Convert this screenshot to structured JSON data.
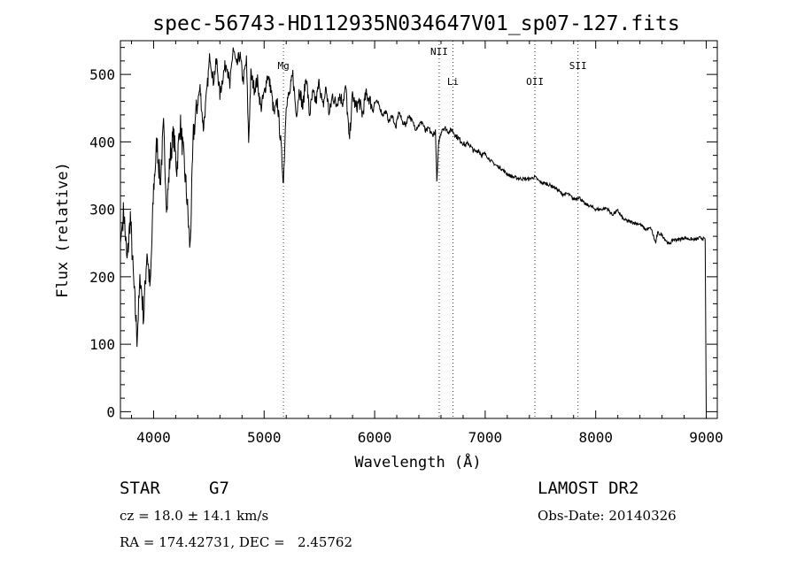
{
  "chart_data": {
    "type": "line",
    "title": "spec-56743-HD112935N034647V01_sp07-127.fits",
    "xlabel": "Wavelength (Å)",
    "ylabel": "Flux (relative)",
    "xlim": [
      3700,
      9100
    ],
    "ylim": [
      -10,
      550
    ],
    "xticks": [
      4000,
      5000,
      6000,
      7000,
      8000,
      9000
    ],
    "yticks": [
      0,
      100,
      200,
      300,
      400,
      500
    ],
    "grid": false,
    "line_color": "#000000",
    "series": [
      {
        "x": [
          3700,
          3730,
          3760,
          3790,
          3820,
          3850,
          3880,
          3910,
          3940,
          3970,
          4000,
          4030,
          4060,
          4090,
          4120,
          4150,
          4180,
          4210,
          4240,
          4270,
          4300,
          4330,
          4360,
          4390,
          4420,
          4450,
          4480,
          4510,
          4540,
          4570,
          4600,
          4630,
          4660,
          4690,
          4720,
          4750,
          4780,
          4810,
          4840,
          4860,
          4880,
          4910,
          4940,
          4970,
          5000,
          5030,
          5060,
          5090,
          5120,
          5150,
          5175,
          5200,
          5230,
          5260,
          5290,
          5320,
          5350,
          5380,
          5410,
          5440,
          5470,
          5500,
          5530,
          5560,
          5590,
          5620,
          5650,
          5680,
          5710,
          5740,
          5770,
          5800,
          5830,
          5860,
          5890,
          5920,
          5950,
          5980,
          6010,
          6040,
          6070,
          6100,
          6130,
          6160,
          6190,
          6220,
          6250,
          6280,
          6310,
          6340,
          6370,
          6400,
          6430,
          6460,
          6490,
          6520,
          6550,
          6563,
          6580,
          6610,
          6640,
          6670,
          6700,
          6730,
          6760,
          6790,
          6820,
          6850,
          6880,
          6910,
          6940,
          6970,
          7000,
          7050,
          7100,
          7150,
          7200,
          7250,
          7300,
          7350,
          7400,
          7450,
          7500,
          7550,
          7600,
          7650,
          7700,
          7750,
          7800,
          7850,
          7900,
          7950,
          8000,
          8050,
          8100,
          8150,
          8200,
          8250,
          8300,
          8350,
          8400,
          8450,
          8500,
          8542,
          8560,
          8600,
          8662,
          8700,
          8750,
          8800,
          8850,
          8900,
          8950,
          8990,
          9000,
          9005
        ],
        "values": [
          250,
          300,
          220,
          290,
          190,
          110,
          200,
          140,
          240,
          180,
          330,
          400,
          340,
          420,
          300,
          380,
          410,
          360,
          430,
          380,
          320,
          240,
          410,
          450,
          480,
          420,
          470,
          530,
          490,
          520,
          470,
          500,
          520,
          480,
          540,
          510,
          530,
          490,
          520,
          400,
          500,
          480,
          490,
          450,
          470,
          500,
          480,
          440,
          460,
          400,
          340,
          460,
          470,
          500,
          440,
          480,
          450,
          500,
          440,
          470,
          460,
          490,
          450,
          480,
          440,
          470,
          455,
          470,
          460,
          480,
          400,
          470,
          450,
          460,
          440,
          470,
          465,
          450,
          460,
          455,
          440,
          445,
          430,
          440,
          420,
          445,
          430,
          425,
          440,
          430,
          420,
          425,
          430,
          415,
          420,
          410,
          415,
          340,
          400,
          420,
          420,
          415,
          418,
          410,
          405,
          400,
          395,
          398,
          390,
          385,
          388,
          380,
          382,
          372,
          365,
          360,
          352,
          348,
          346,
          345,
          345,
          348,
          340,
          338,
          335,
          330,
          322,
          323,
          315,
          318,
          308,
          305,
          300,
          300,
          302,
          292,
          298,
          285,
          282,
          280,
          278,
          270,
          272,
          250,
          265,
          262,
          248,
          255,
          255,
          258,
          256,
          255,
          258,
          255,
          0,
          0
        ]
      }
    ],
    "annotations": [
      {
        "label": "Mg",
        "x": 5175
      },
      {
        "label": "NII",
        "x": 6584
      },
      {
        "label": "Li",
        "x": 6708
      },
      {
        "label": "OII",
        "x": 7450
      },
      {
        "label": "SII",
        "x": 7840
      }
    ]
  },
  "info": {
    "object_class": "STAR",
    "subclass": "G7",
    "survey": "LAMOST DR2",
    "cz": "cz = 18.0 ± 14.1 km/s",
    "obs_date": "Obs-Date: 20140326",
    "coords": "RA = 174.42731, DEC =   2.45762"
  }
}
